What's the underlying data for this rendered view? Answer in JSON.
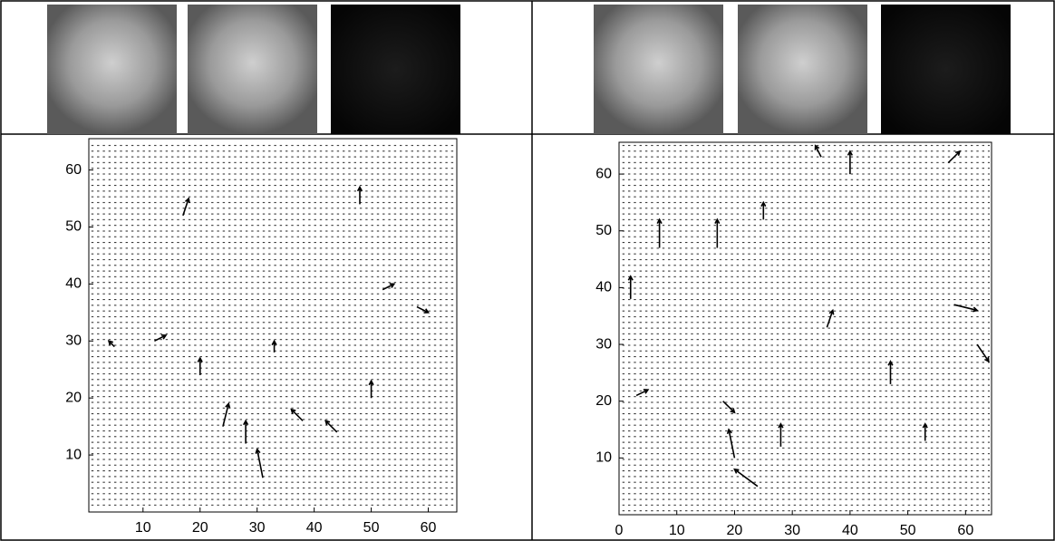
{
  "chart_data": [
    {
      "type": "quiver",
      "xlim": [
        0.5,
        65
      ],
      "ylim": [
        0,
        65.5
      ],
      "xticks": [
        10,
        20,
        30,
        40,
        50,
        60
      ],
      "yticks": [
        10,
        20,
        30,
        40,
        50,
        60
      ],
      "x": [
        28,
        31,
        24,
        38,
        44,
        50,
        17,
        48,
        52,
        58,
        12,
        5,
        20,
        33
      ],
      "y": [
        12,
        6,
        15,
        16,
        14,
        20,
        52,
        54,
        39,
        36,
        30,
        29,
        24,
        28
      ],
      "u": [
        0,
        -1,
        1,
        -2,
        -2,
        0,
        1,
        0,
        2,
        2,
        2,
        -1,
        0,
        0
      ],
      "v": [
        4,
        5,
        4,
        2,
        2,
        3,
        3,
        3,
        1,
        -1,
        1,
        1,
        3,
        2
      ]
    },
    {
      "type": "quiver",
      "xlim": [
        0,
        64.5
      ],
      "ylim": [
        0,
        65.6
      ],
      "xticks": [
        0,
        10,
        20,
        30,
        40,
        50,
        60
      ],
      "yticks": [
        10,
        20,
        30,
        40,
        50,
        60
      ],
      "x": [
        18,
        20,
        24,
        28,
        7,
        2,
        17,
        35,
        40,
        57,
        58,
        62,
        47,
        25,
        36,
        3,
        53
      ],
      "y": [
        20,
        10,
        5,
        12,
        47,
        38,
        47,
        63,
        60,
        62,
        37,
        30,
        23,
        52,
        33,
        21,
        13
      ],
      "u": [
        2,
        -1,
        -4,
        0,
        0,
        0,
        0,
        -1,
        0,
        2,
        4,
        2,
        0,
        0,
        1,
        2,
        0
      ],
      "v": [
        -2,
        5,
        3,
        4,
        5,
        4,
        5,
        2,
        4,
        2,
        -1,
        -3,
        4,
        3,
        3,
        1,
        3
      ]
    }
  ]
}
